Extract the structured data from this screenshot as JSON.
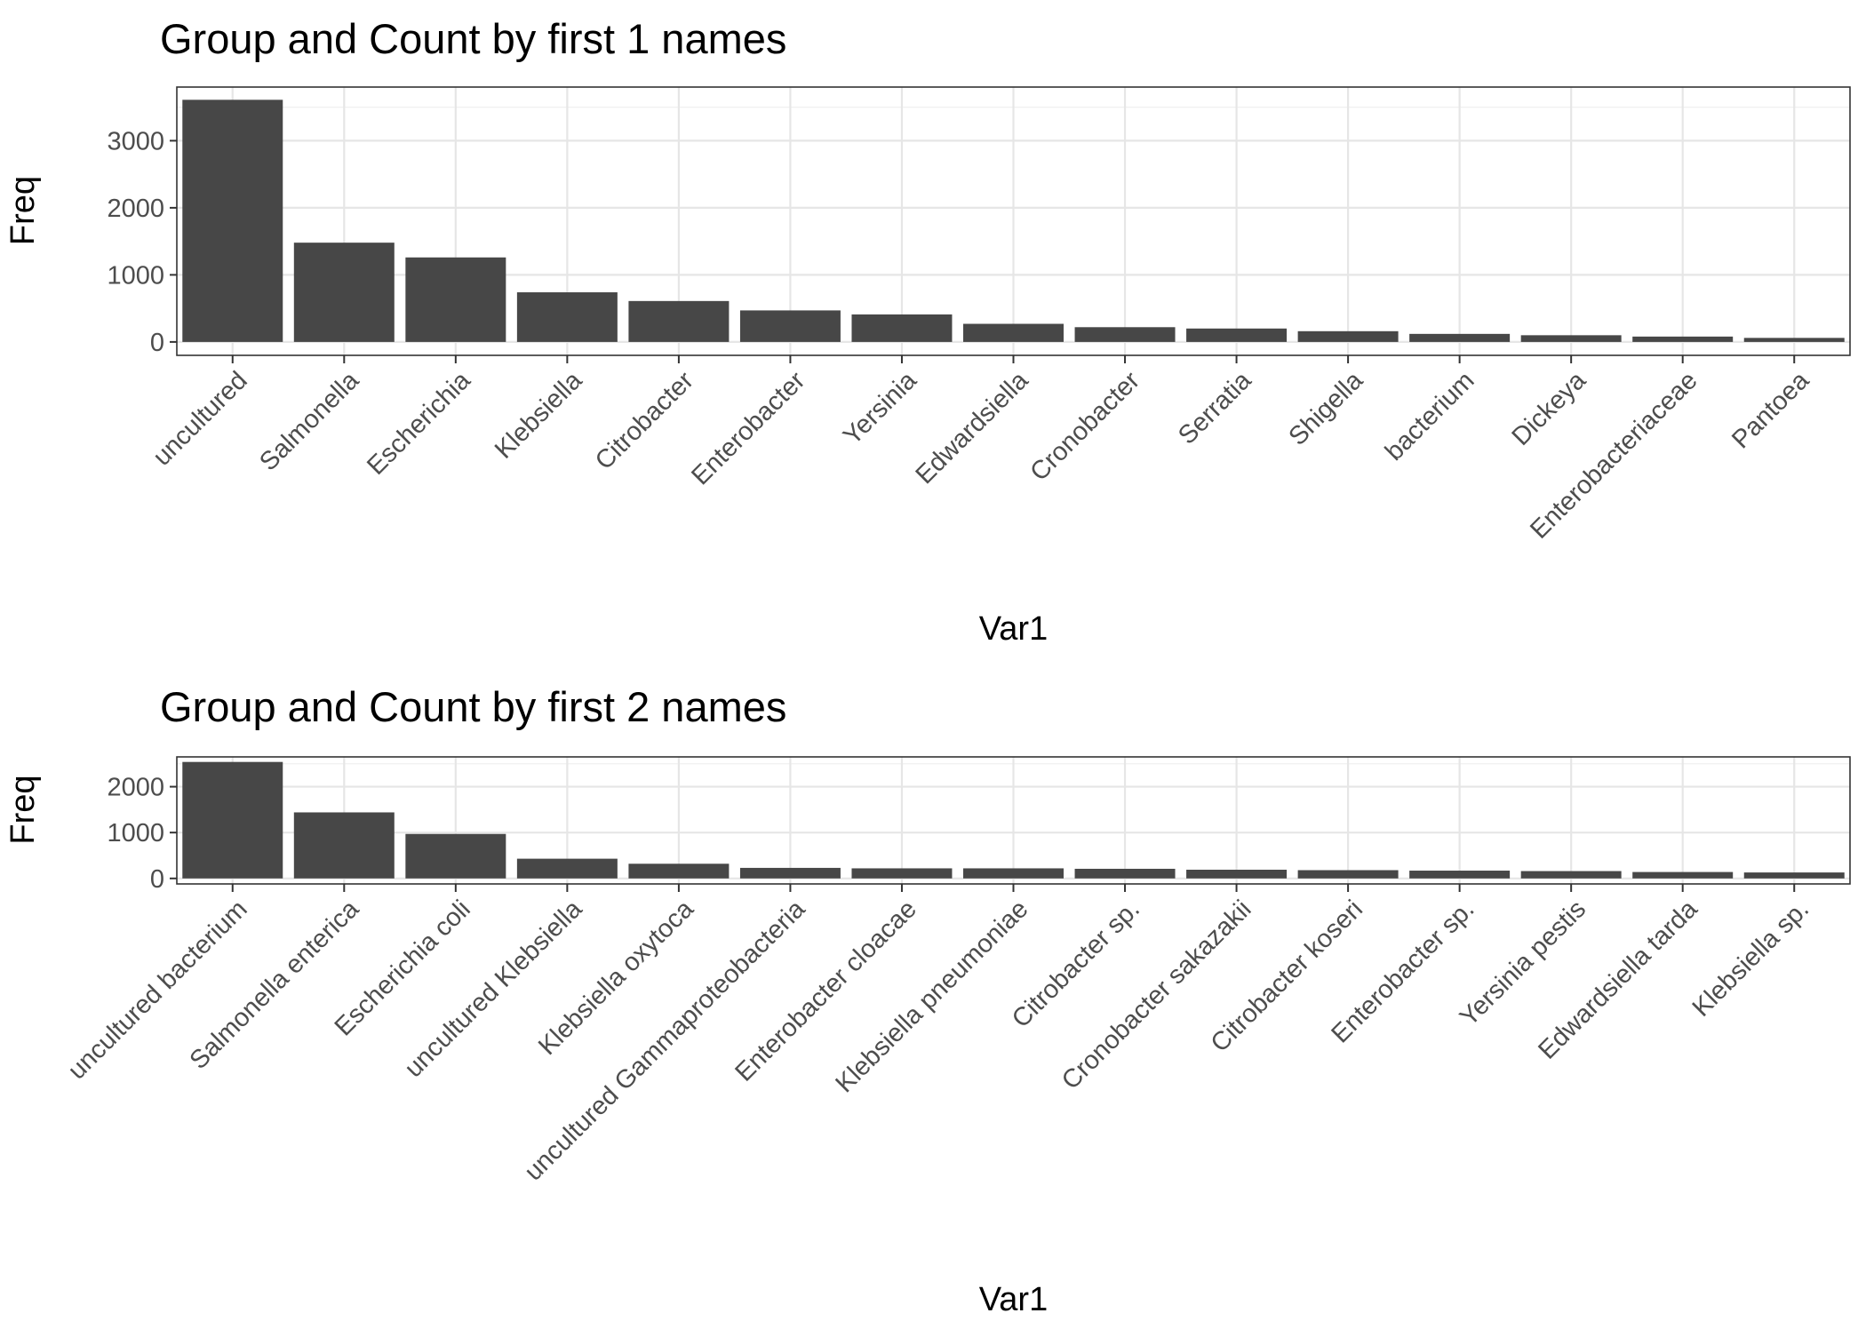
{
  "chart_data": [
    {
      "type": "bar",
      "title": "Group and Count by first 1 names",
      "xlabel": "Var1",
      "ylabel": "Freq",
      "categories": [
        "uncultured",
        "Salmonella",
        "Escherichia",
        "Klebsiella",
        "Citrobacter",
        "Enterobacter",
        "Yersinia",
        "Edwardsiella",
        "Cronobacter",
        "Serratia",
        "Shigella",
        "bacterium",
        "Dickeya",
        "Enterobacteriaceae",
        "Pantoea"
      ],
      "values": [
        3610,
        1480,
        1260,
        740,
        610,
        470,
        410,
        270,
        220,
        200,
        160,
        120,
        100,
        80,
        60
      ],
      "ylim": [
        -200,
        3800
      ],
      "yticks": [
        0,
        1000,
        2000,
        3000
      ],
      "grid": true,
      "bar_color": "#474747"
    },
    {
      "type": "bar",
      "title": "Group and Count by first 2 names",
      "xlabel": "Var1",
      "ylabel": "Freq",
      "categories": [
        "uncultured bacterium",
        "Salmonella enterica",
        "Escherichia coli",
        "uncultured Klebsiella",
        "Klebsiella oxytoca",
        "uncultured Gammaproteobacteria",
        "Enterobacter cloacae",
        "Klebsiella pneumoniae",
        "Citrobacter sp.",
        "Cronobacter sakazakii",
        "Citrobacter koseri",
        "Enterobacter sp.",
        "Yersinia pestis",
        "Edwardsiella tarda",
        "Klebsiella sp."
      ],
      "values": [
        2540,
        1440,
        970,
        430,
        320,
        230,
        220,
        220,
        210,
        190,
        180,
        170,
        160,
        140,
        130
      ],
      "ylim": [
        -120,
        2650
      ],
      "yticks": [
        0,
        1000,
        2000
      ],
      "grid": true,
      "bar_color": "#474747"
    }
  ]
}
